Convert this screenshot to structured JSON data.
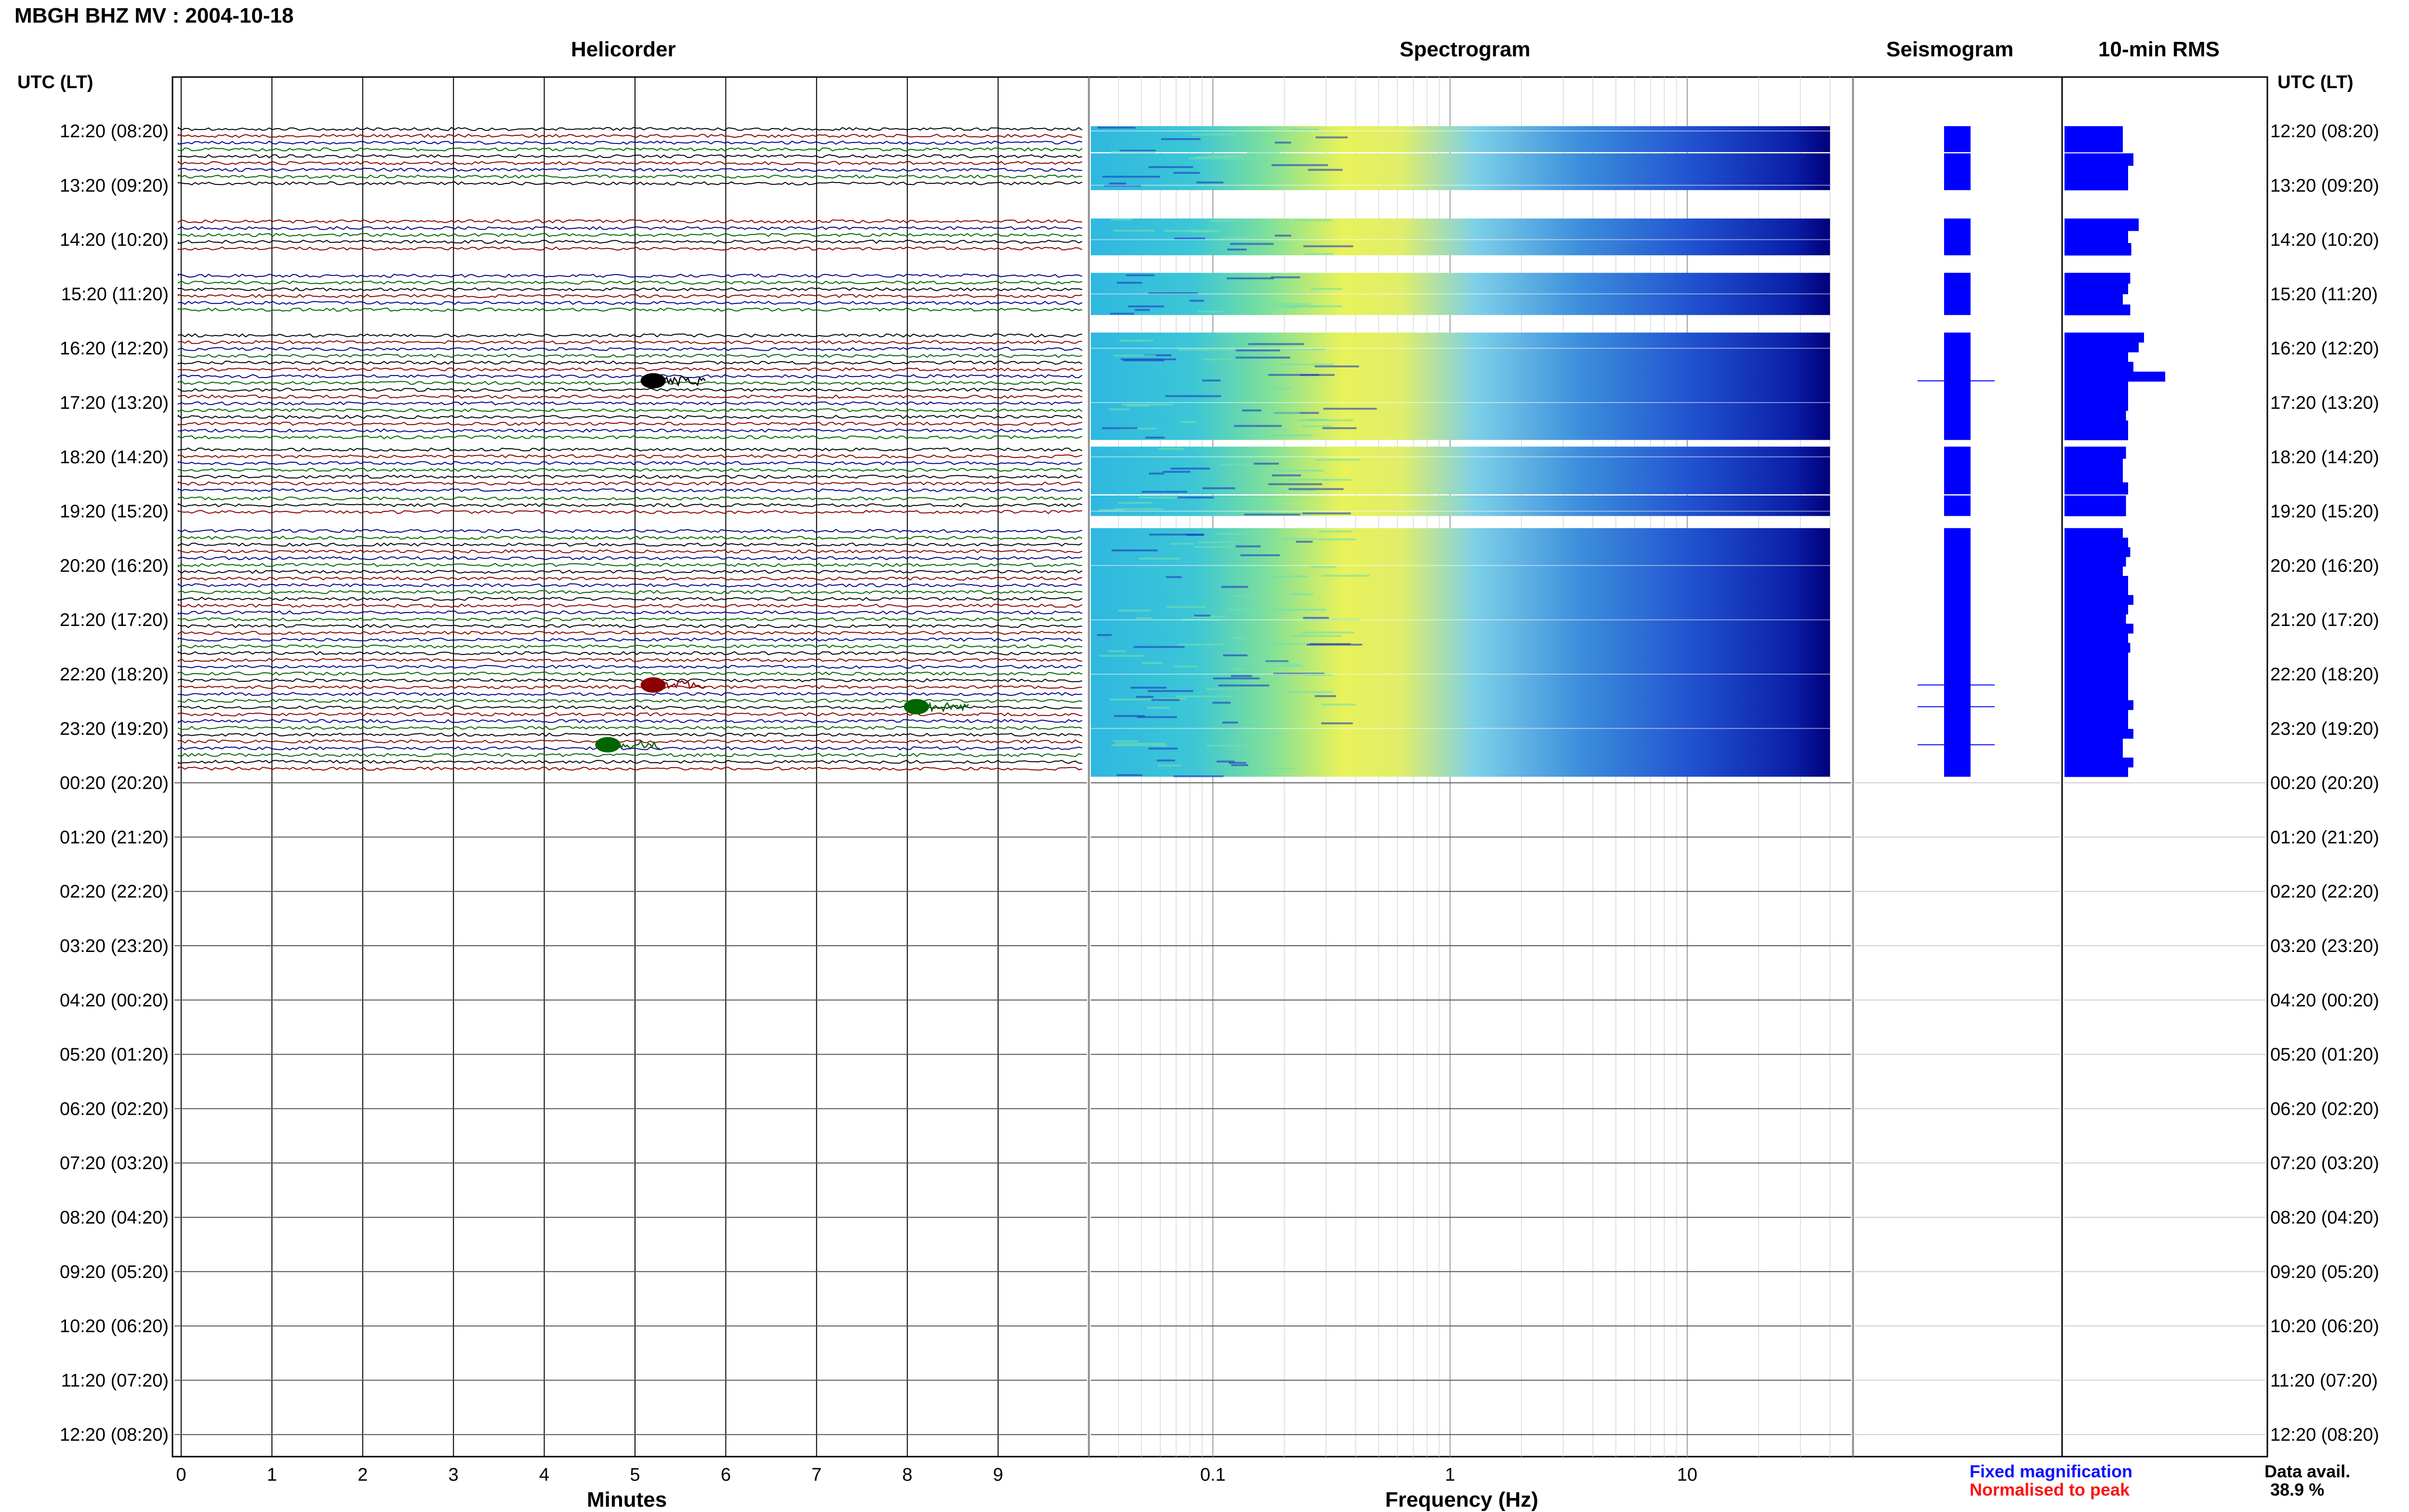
{
  "title": "MBGH BHZ MV : 2004-10-18",
  "panels": {
    "helicorder": "Helicorder",
    "spectrogram": "Spectrogram",
    "seismogram": "Seismogram",
    "rms": "10-min RMS"
  },
  "time_axis_label": "UTC (LT)",
  "xlabel_minutes": "Minutes",
  "xlabel_frequency": "Frequency (Hz)",
  "legend": {
    "fixed": "Fixed magnification",
    "normalised": "Normalised to peak",
    "fixed_color": "#1010ff",
    "normalised_color": "#ff1010"
  },
  "data_avail": {
    "label": "Data avail.",
    "value": "38.9 %"
  },
  "colors": {
    "trace_cycle": [
      "#000000",
      "#8b0000",
      "#00008b",
      "#006400"
    ],
    "spectrogram_low": "#00008b",
    "spectrogram_high": "#ffff40",
    "bars": "#0000ff"
  },
  "chart_data": {
    "type": "heatmap",
    "rows": [
      {
        "utc": "12:20",
        "lt": "08:20",
        "label": "12:20 (08:20)",
        "data": true
      },
      {
        "utc": "13:20",
        "lt": "09:20",
        "label": "13:20 (09:20)",
        "data": true
      },
      {
        "utc": "14:20",
        "lt": "10:20",
        "label": "14:20 (10:20)",
        "data": true
      },
      {
        "utc": "15:20",
        "lt": "11:20",
        "label": "15:20 (11:20)",
        "data": true
      },
      {
        "utc": "16:20",
        "lt": "12:20",
        "label": "16:20 (12:20)",
        "data": true
      },
      {
        "utc": "17:20",
        "lt": "13:20",
        "label": "17:20 (13:20)",
        "data": true
      },
      {
        "utc": "18:20",
        "lt": "14:20",
        "label": "18:20 (14:20)",
        "data": true
      },
      {
        "utc": "19:20",
        "lt": "15:20",
        "label": "19:20 (15:20)",
        "data": true
      },
      {
        "utc": "20:20",
        "lt": "16:20",
        "label": "20:20 (16:20)",
        "data": true
      },
      {
        "utc": "21:20",
        "lt": "17:20",
        "label": "21:20 (17:20)",
        "data": true
      },
      {
        "utc": "22:20",
        "lt": "18:20",
        "label": "22:20 (18:20)",
        "data": true
      },
      {
        "utc": "23:20",
        "lt": "19:20",
        "label": "23:20 (19:20)",
        "data": true
      },
      {
        "utc": "00:20",
        "lt": "20:20",
        "label": "00:20 (20:20)",
        "data": false
      },
      {
        "utc": "01:20",
        "lt": "21:20",
        "label": "01:20 (21:20)",
        "data": false
      },
      {
        "utc": "02:20",
        "lt": "22:20",
        "label": "02:20 (22:20)",
        "data": false
      },
      {
        "utc": "03:20",
        "lt": "23:20",
        "label": "03:20 (23:20)",
        "data": false
      },
      {
        "utc": "04:20",
        "lt": "00:20",
        "label": "04:20 (00:20)",
        "data": false
      },
      {
        "utc": "05:20",
        "lt": "01:20",
        "label": "05:20 (01:20)",
        "data": false
      },
      {
        "utc": "06:20",
        "lt": "02:20",
        "label": "06:20 (02:20)",
        "data": false
      },
      {
        "utc": "07:20",
        "lt": "03:20",
        "label": "07:20 (03:20)",
        "data": false
      },
      {
        "utc": "08:20",
        "lt": "04:20",
        "label": "08:20 (04:20)",
        "data": false
      },
      {
        "utc": "09:20",
        "lt": "05:20",
        "label": "09:20 (05:20)",
        "data": false
      },
      {
        "utc": "10:20",
        "lt": "06:20",
        "label": "10:20 (06:20)",
        "data": false
      },
      {
        "utc": "11:20",
        "lt": "07:20",
        "label": "11:20 (07:20)",
        "data": false
      },
      {
        "utc": "12:20",
        "lt": "08:20",
        "label": "12:20 (08:20)",
        "data": false
      }
    ],
    "minutes_ticks": [
      0,
      1,
      2,
      3,
      4,
      5,
      6,
      7,
      8,
      9
    ],
    "minutes_range": [
      0,
      10
    ],
    "frequency_ticks": [
      0.1,
      1,
      10
    ],
    "frequency_tick_labels": [
      "0.1",
      "1",
      "10"
    ],
    "frequency_range": [
      0.03,
      50
    ],
    "frequency_data_max": 40,
    "frequency_scale": "log",
    "data_segments_hours": [
      [
        0,
        0.3
      ],
      [
        0.5,
        1.0
      ],
      [
        1.7,
        2.2
      ],
      [
        2.7,
        3.3
      ],
      [
        3.8,
        5.6
      ],
      [
        5.9,
        6.6
      ],
      [
        6.8,
        7.0
      ],
      [
        7.4,
        11.8
      ]
    ],
    "events": [
      {
        "hour": 4.6,
        "minute": 5.2,
        "color": "#000000"
      },
      {
        "hour": 10.2,
        "minute": 5.2,
        "color": "#8b0000"
      },
      {
        "hour": 10.6,
        "minute": 8.1,
        "color": "#006400"
      },
      {
        "hour": 11.3,
        "minute": 4.7,
        "color": "#006400"
      }
    ],
    "rms_bars": [
      0.55,
      0.55,
      0.65,
      0.6,
      0.6,
      0.7,
      0.6,
      0.63,
      0.62,
      0.6,
      0.55,
      0.62,
      0.75,
      0.7,
      0.6,
      0.65,
      0.95,
      0.6,
      0.6,
      0.6,
      0.58,
      0.6,
      0.6,
      0.58,
      0.55,
      0.55,
      0.6,
      0.58,
      0.55,
      0.6,
      0.62,
      0.58,
      0.55,
      0.6,
      0.6,
      0.65,
      0.6,
      0.58,
      0.65,
      0.6,
      0.62,
      0.6,
      0.6,
      0.6,
      0.6,
      0.6,
      0.65,
      0.6,
      0.6,
      0.65
    ]
  }
}
